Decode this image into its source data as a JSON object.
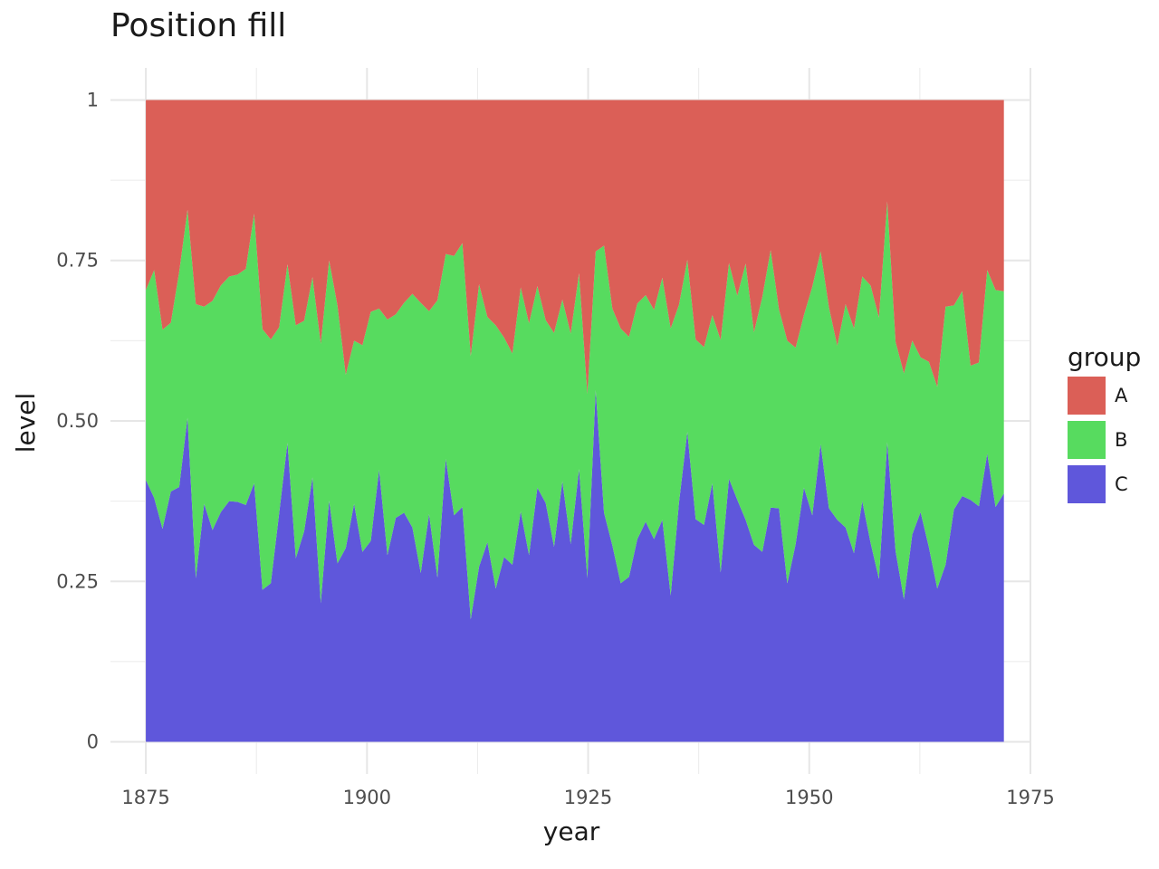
{
  "chart_data": {
    "type": "area",
    "title": "Position fill",
    "xlabel": "year",
    "ylabel": "level",
    "xlim": [
      1871,
      1975
    ],
    "ylim": [
      -0.05,
      1.05
    ],
    "x_ticks": [
      1875,
      1900,
      1925,
      1950,
      1975
    ],
    "x_tick_labels": [
      "1875",
      "1900",
      "1925",
      "1950",
      "1975"
    ],
    "y_ticks": [
      0,
      0.25,
      0.5,
      0.75,
      1
    ],
    "y_tick_labels": [
      "0",
      "0.25",
      "0.50",
      "0.75",
      "1"
    ],
    "grid": true,
    "legend": {
      "title": "group",
      "position": "right"
    },
    "x_start": 1875,
    "x_end": 1972,
    "series": [
      {
        "name": "A",
        "color": "#db5f57",
        "values": [
          0.296,
          0.265,
          0.358,
          0.347,
          0.268,
          0.171,
          0.318,
          0.322,
          0.313,
          0.289,
          0.275,
          0.272,
          0.263,
          0.177,
          0.357,
          0.373,
          0.354,
          0.256,
          0.351,
          0.344,
          0.276,
          0.38,
          0.25,
          0.32,
          0.428,
          0.375,
          0.382,
          0.33,
          0.325,
          0.342,
          0.334,
          0.316,
          0.302,
          0.316,
          0.329,
          0.312,
          0.24,
          0.243,
          0.223,
          0.399,
          0.287,
          0.338,
          0.351,
          0.37,
          0.395,
          0.292,
          0.348,
          0.29,
          0.343,
          0.363,
          0.311,
          0.364,
          0.27,
          0.458,
          0.236,
          0.227,
          0.325,
          0.356,
          0.369,
          0.317,
          0.304,
          0.327,
          0.277,
          0.356,
          0.319,
          0.249,
          0.373,
          0.385,
          0.335,
          0.374,
          0.254,
          0.305,
          0.255,
          0.362,
          0.307,
          0.234,
          0.326,
          0.375,
          0.386,
          0.335,
          0.291,
          0.236,
          0.323,
          0.383,
          0.318,
          0.356,
          0.275,
          0.289,
          0.339,
          0.158,
          0.377,
          0.426,
          0.375,
          0.401,
          0.408,
          0.447,
          0.322,
          0.32,
          0.298,
          0.414,
          0.409,
          0.265,
          0.296,
          0.298
        ]
      },
      {
        "name": "B",
        "color": "#57db5f",
        "values": [
          0.296,
          0.355,
          0.31,
          0.263,
          0.335,
          0.324,
          0.427,
          0.307,
          0.357,
          0.353,
          0.35,
          0.354,
          0.368,
          0.42,
          0.406,
          0.38,
          0.29,
          0.278,
          0.363,
          0.328,
          0.312,
          0.404,
          0.374,
          0.402,
          0.27,
          0.254,
          0.322,
          0.357,
          0.251,
          0.367,
          0.317,
          0.327,
          0.364,
          0.421,
          0.316,
          0.432,
          0.319,
          0.404,
          0.411,
          0.41,
          0.44,
          0.351,
          0.41,
          0.342,
          0.329,
          0.349,
          0.361,
          0.314,
          0.285,
          0.333,
          0.283,
          0.328,
          0.305,
          0.287,
          0.216,
          0.416,
          0.369,
          0.397,
          0.374,
          0.367,
          0.353,
          0.357,
          0.377,
          0.416,
          0.308,
          0.268,
          0.28,
          0.277,
          0.262,
          0.362,
          0.336,
          0.318,
          0.399,
          0.331,
          0.397,
          0.401,
          0.31,
          0.378,
          0.306,
          0.269,
          0.356,
          0.3,
          0.313,
          0.271,
          0.348,
          0.35,
          0.35,
          0.401,
          0.407,
          0.375,
          0.326,
          0.352,
          0.302,
          0.241,
          0.289,
          0.314,
          0.402,
          0.318,
          0.319,
          0.209,
          0.224,
          0.286,
          0.338,
          0.315
        ]
      },
      {
        "name": "C",
        "color": "#5f57db",
        "values": [
          0.408,
          0.38,
          0.332,
          0.39,
          0.397,
          0.505,
          0.255,
          0.371,
          0.33,
          0.358,
          0.375,
          0.374,
          0.369,
          0.403,
          0.237,
          0.247,
          0.356,
          0.466,
          0.286,
          0.328,
          0.412,
          0.216,
          0.376,
          0.278,
          0.302,
          0.371,
          0.296,
          0.313,
          0.424,
          0.291,
          0.349,
          0.357,
          0.334,
          0.263,
          0.355,
          0.256,
          0.441,
          0.353,
          0.366,
          0.191,
          0.273,
          0.311,
          0.239,
          0.288,
          0.276,
          0.359,
          0.291,
          0.396,
          0.372,
          0.304,
          0.406,
          0.308,
          0.425,
          0.255,
          0.548,
          0.357,
          0.306,
          0.247,
          0.257,
          0.316,
          0.343,
          0.316,
          0.346,
          0.228,
          0.373,
          0.483,
          0.347,
          0.338,
          0.403,
          0.264,
          0.41,
          0.377,
          0.346,
          0.307,
          0.296,
          0.365,
          0.364,
          0.247,
          0.308,
          0.396,
          0.353,
          0.464,
          0.364,
          0.346,
          0.334,
          0.294,
          0.375,
          0.31,
          0.254,
          0.467,
          0.297,
          0.222,
          0.323,
          0.358,
          0.303,
          0.239,
          0.276,
          0.362,
          0.383,
          0.377,
          0.367,
          0.449,
          0.366,
          0.387
        ]
      }
    ]
  }
}
